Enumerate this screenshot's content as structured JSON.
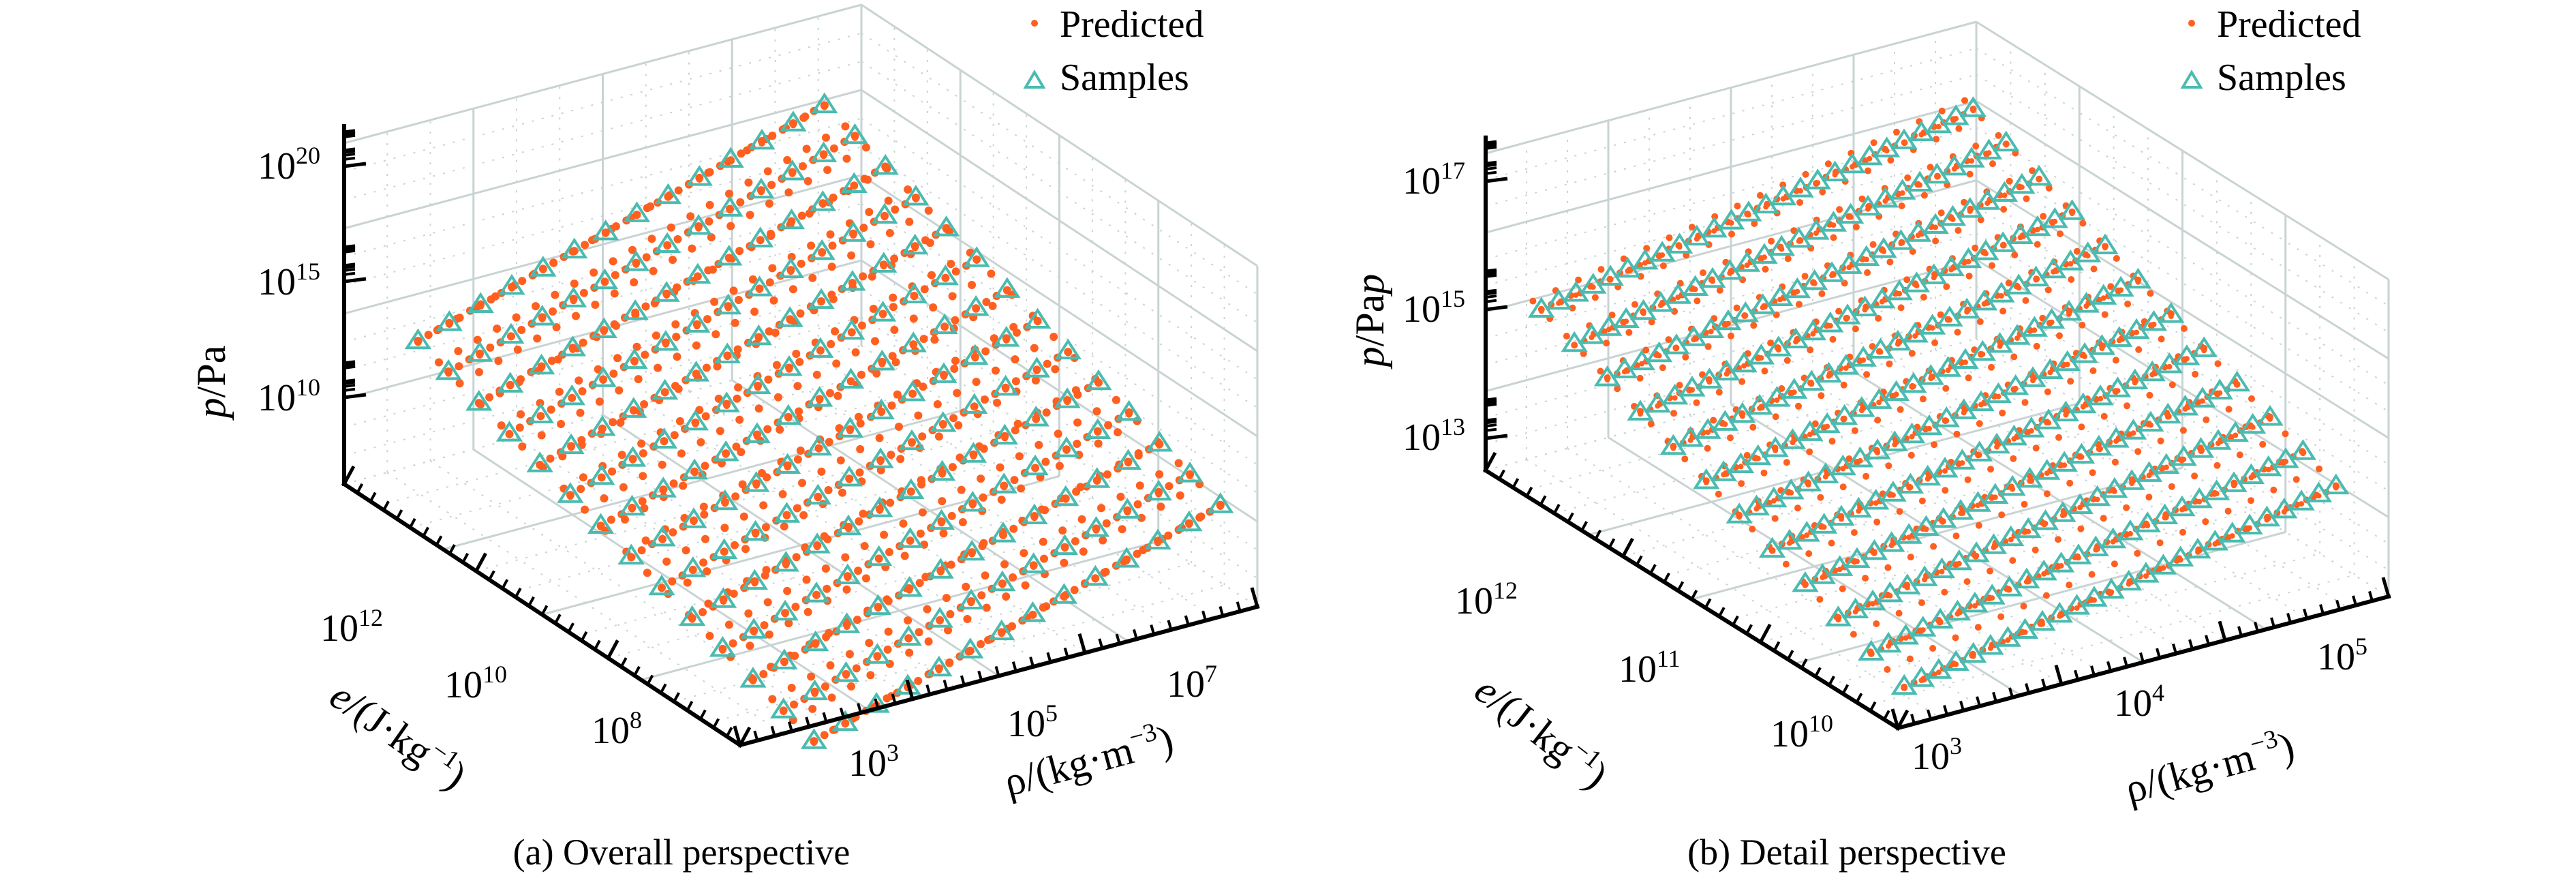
{
  "colors": {
    "predicted": "#ff5f1f",
    "samples": "#4bbbb0",
    "grid": "#c9d3d3",
    "axis": "#000000"
  },
  "chart_data": [
    {
      "type": "scatter",
      "subtype": "scatter3d",
      "title": "",
      "caption": "(a) Overall perspective",
      "xlabel": "ρ/(kg·m⁻³)",
      "ylabel": "e/(J·kg⁻¹)",
      "zlabel": "p/Pa",
      "scale": "log",
      "x_ticks": [
        "10^3",
        "10^5",
        "10^7"
      ],
      "y_ticks": [
        "10^12",
        "10^10",
        "10^8"
      ],
      "z_ticks": [
        "10^20",
        "10^15",
        "10^10"
      ],
      "xlim_log10": [
        1,
        8
      ],
      "ylim_log10": [
        7,
        13
      ],
      "zlim_log10": [
        7,
        21
      ],
      "grid": true,
      "legend": {
        "position": "top-right",
        "entries": [
          "Predicted",
          "Samples"
        ]
      },
      "series": [
        {
          "name": "Predicted",
          "marker": "dot",
          "color": "#ff5f1f",
          "description": "dense curves of predicted pressure over the (rho, e) domain",
          "rho_log10_range": [
            2,
            7.5
          ],
          "e_log10_range": [
            7,
            13
          ],
          "p_log10_range": [
            8,
            21
          ],
          "grid_rho_lines": 22,
          "grid_e_lines": 14,
          "points_per_line": 40
        },
        {
          "name": "Samples",
          "marker": "triangle",
          "color": "#4bbbb0",
          "description": "sample points on a regular log grid in (rho, e)",
          "rho_log10_range": [
            2,
            7.5
          ],
          "e_log10_range": [
            7,
            13
          ],
          "p_log10_range": [
            8,
            21
          ],
          "grid_rho_lines": 12,
          "grid_e_lines": 14,
          "points_per_line": 14
        }
      ]
    },
    {
      "type": "scatter",
      "subtype": "scatter3d",
      "title": "",
      "caption": "(b) Detail perspective",
      "xlabel": "ρ/(kg·m⁻³)",
      "ylabel": "e/(J·kg⁻¹)",
      "zlabel": "p/Pap",
      "scale": "log",
      "x_ticks": [
        "10^3",
        "10^4",
        "10^5"
      ],
      "y_ticks": [
        "10^12",
        "10^11",
        "10^10"
      ],
      "z_ticks": [
        "10^17",
        "10^15",
        "10^13"
      ],
      "xlim_log10": [
        2.8,
        5.3
      ],
      "ylim_log10": [
        9.8,
        12.3
      ],
      "zlim_log10": [
        12.5,
        17.6
      ],
      "grid": true,
      "legend": {
        "position": "top-right",
        "entries": [
          "Predicted",
          "Samples"
        ]
      },
      "series": [
        {
          "name": "Predicted",
          "marker": "dot",
          "color": "#ff5f1f",
          "description": "predicted points along lines of constant rho and constant e",
          "rho_log10_range": [
            3,
            5.2
          ],
          "e_log10_range": [
            10,
            12.2
          ],
          "p_log10_range": [
            12.8,
            17.6
          ],
          "grid_rho_lines": 20,
          "grid_e_lines": 12,
          "points_per_line": 45
        },
        {
          "name": "Samples",
          "marker": "triangle",
          "color": "#4bbbb0",
          "description": "sample points on a regular log grid in (rho, e)",
          "rho_log10_range": [
            3,
            5.2
          ],
          "e_log10_range": [
            10,
            12.2
          ],
          "p_log10_range": [
            12.8,
            17.6
          ],
          "grid_rho_lines": 6,
          "grid_e_lines": 12,
          "points_per_line": 26
        }
      ]
    }
  ],
  "panels": [
    {
      "caption": "(a) Overall perspective",
      "zlabel_italic": "p",
      "zlabel_rest": "/Pa",
      "ylabel_italic": "e",
      "ylabel_rest": "/(J·kg",
      "ylabel_exp": "−1",
      "ylabel_close": ")",
      "xlabel_main": "ρ/(kg·m",
      "xlabel_exp": "−3",
      "xlabel_close": ")",
      "z_ticks": [
        {
          "base": "10",
          "exp": "20"
        },
        {
          "base": "10",
          "exp": "15"
        },
        {
          "base": "10",
          "exp": "10"
        }
      ],
      "y_ticks": [
        {
          "base": "10",
          "exp": "12"
        },
        {
          "base": "10",
          "exp": "10"
        },
        {
          "base": "10",
          "exp": "8"
        }
      ],
      "x_ticks": [
        {
          "base": "10",
          "exp": "3"
        },
        {
          "base": "10",
          "exp": "5"
        },
        {
          "base": "10",
          "exp": "7"
        }
      ],
      "legend": [
        "Predicted",
        "Samples"
      ]
    },
    {
      "caption": "(b) Detail perspective",
      "zlabel_italic": "p",
      "zlabel_rest": "/Pa",
      "zlabel_italic2": "p",
      "ylabel_italic": "e",
      "ylabel_rest": "/(J·kg",
      "ylabel_exp": "−1",
      "ylabel_close": ")",
      "xlabel_main": "ρ/(kg·m",
      "xlabel_exp": "−3",
      "xlabel_close": ")",
      "z_ticks": [
        {
          "base": "10",
          "exp": "17"
        },
        {
          "base": "10",
          "exp": "15"
        },
        {
          "base": "10",
          "exp": "13"
        }
      ],
      "y_ticks": [
        {
          "base": "10",
          "exp": "12"
        },
        {
          "base": "10",
          "exp": "11"
        },
        {
          "base": "10",
          "exp": "10"
        }
      ],
      "x_ticks": [
        {
          "base": "10",
          "exp": "3"
        },
        {
          "base": "10",
          "exp": "4"
        },
        {
          "base": "10",
          "exp": "5"
        }
      ],
      "legend": [
        "Predicted",
        "Samples"
      ]
    }
  ]
}
